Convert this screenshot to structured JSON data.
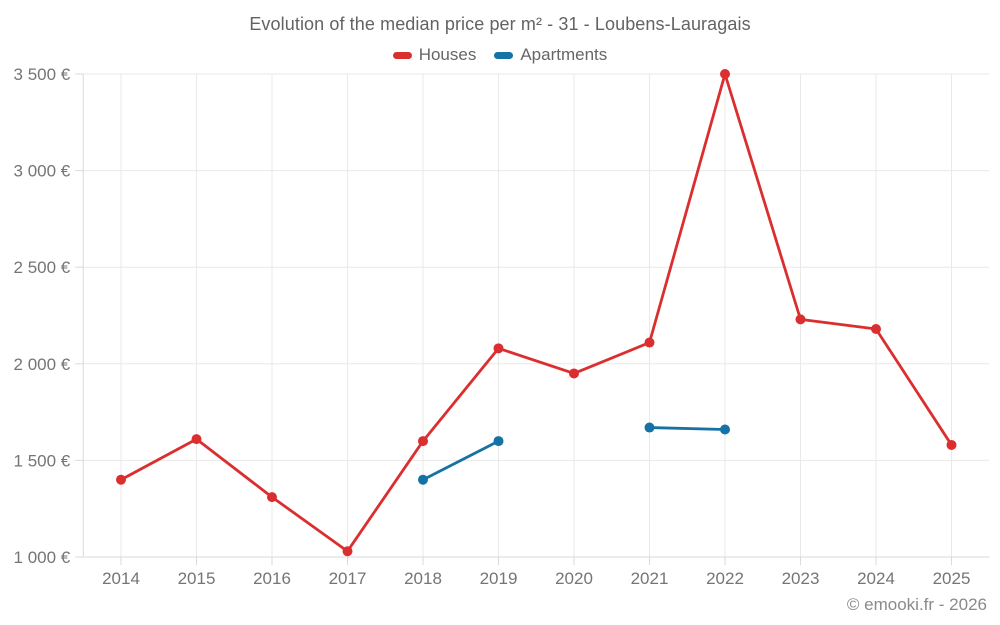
{
  "title": "Evolution of the median price per m² - 31 - Loubens-Lauragais",
  "legend": [
    {
      "label": "Houses",
      "color": "#db2f2f"
    },
    {
      "label": "Apartments",
      "color": "#1572a5"
    }
  ],
  "footer": {
    "copyright": "© emooki.fr - 2026"
  },
  "colors": {
    "houses": "#db2f2f",
    "apartments": "#1572a5",
    "grid": "#e9e9e9",
    "axis": "#dadada",
    "tick_text": "#757575",
    "title_text": "#636363"
  },
  "chart_data": {
    "type": "line",
    "title": "Evolution of the median price per m² - 31 - Loubens-Lauragais",
    "xlabel": "",
    "ylabel": "",
    "categories": [
      "2014",
      "2015",
      "2016",
      "2017",
      "2018",
      "2019",
      "2020",
      "2021",
      "2022",
      "2023",
      "2024",
      "2025"
    ],
    "series": [
      {
        "name": "Houses",
        "color": "#db2f2f",
        "values": [
          1400,
          1610,
          1310,
          1030,
          1600,
          2080,
          1950,
          2110,
          3500,
          2230,
          2180,
          1580
        ]
      },
      {
        "name": "Apartments",
        "color": "#1572a5",
        "values": [
          null,
          null,
          null,
          null,
          1400,
          1600,
          null,
          1670,
          1660,
          null,
          null,
          null
        ]
      }
    ],
    "ylim": [
      1000,
      3500
    ],
    "yticks": [
      {
        "value": 1000,
        "label": "1 000 €"
      },
      {
        "value": 1500,
        "label": "1 500 €"
      },
      {
        "value": 2000,
        "label": "2 000 €"
      },
      {
        "value": 2500,
        "label": "2 500 €"
      },
      {
        "value": 3000,
        "label": "3 000 €"
      },
      {
        "value": 3500,
        "label": "3 500 €"
      }
    ],
    "grid": true,
    "legend_position": "top"
  }
}
